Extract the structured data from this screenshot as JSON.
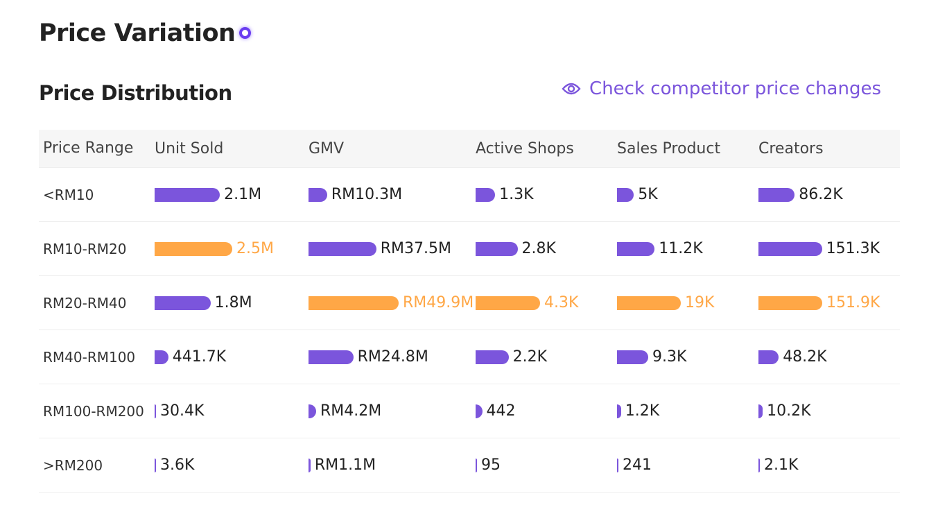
{
  "header": {
    "title": "Price Variation",
    "subtitle": "Price Distribution",
    "link": "Check competitor price changes"
  },
  "bar_color": "#7b55dc",
  "highlight_color": "#ffa746",
  "table": {
    "columns": [
      "Price Range",
      "Unit Sold",
      "GMV",
      "Active Shops",
      "Sales Product",
      "Creators"
    ],
    "rows": [
      {
        "range": "<RM10",
        "cells": [
          {
            "label": "2.1M",
            "value": 2100000
          },
          {
            "label": "RM10.3M",
            "value": 10300000
          },
          {
            "label": "1.3K",
            "value": 1300
          },
          {
            "label": "5K",
            "value": 5000
          },
          {
            "label": "86.2K",
            "value": 86200
          }
        ]
      },
      {
        "range": "RM10-RM20",
        "cells": [
          {
            "label": "2.5M",
            "value": 2500000
          },
          {
            "label": "RM37.5M",
            "value": 37500000
          },
          {
            "label": "2.8K",
            "value": 2800
          },
          {
            "label": "11.2K",
            "value": 11200
          },
          {
            "label": "151.3K",
            "value": 151300
          }
        ]
      },
      {
        "range": "RM20-RM40",
        "cells": [
          {
            "label": "1.8M",
            "value": 1800000
          },
          {
            "label": "RM49.9M",
            "value": 49900000
          },
          {
            "label": "4.3K",
            "value": 4300
          },
          {
            "label": "19K",
            "value": 19000
          },
          {
            "label": "151.9K",
            "value": 151900
          }
        ]
      },
      {
        "range": "RM40-RM100",
        "cells": [
          {
            "label": "441.7K",
            "value": 441700
          },
          {
            "label": "RM24.8M",
            "value": 24800000
          },
          {
            "label": "2.2K",
            "value": 2200
          },
          {
            "label": "9.3K",
            "value": 9300
          },
          {
            "label": "48.2K",
            "value": 48200
          }
        ]
      },
      {
        "range": "RM100-RM200",
        "cells": [
          {
            "label": "30.4K",
            "value": 30400
          },
          {
            "label": "RM4.2M",
            "value": 4200000
          },
          {
            "label": "442",
            "value": 442
          },
          {
            "label": "1.2K",
            "value": 1200
          },
          {
            "label": "10.2K",
            "value": 10200
          }
        ]
      },
      {
        "range": ">RM200",
        "cells": [
          {
            "label": "3.6K",
            "value": 3600
          },
          {
            "label": "RM1.1M",
            "value": 1100000
          },
          {
            "label": "95",
            "value": 95
          },
          {
            "label": "241",
            "value": 241
          },
          {
            "label": "2.1K",
            "value": 2100
          }
        ]
      }
    ]
  }
}
